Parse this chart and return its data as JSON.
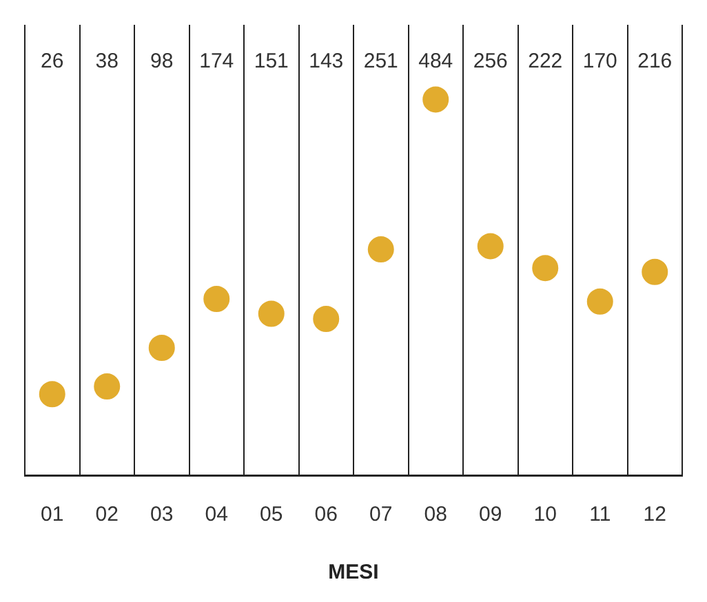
{
  "chart_data": {
    "type": "scatter",
    "xlabel": "MESI",
    "categories": [
      "01",
      "02",
      "03",
      "04",
      "05",
      "06",
      "07",
      "08",
      "09",
      "10",
      "11",
      "12"
    ],
    "series": [
      {
        "color": "#e2ac2e",
        "values": [
          26,
          38,
          98,
          174,
          151,
          143,
          251,
          484,
          256,
          222,
          170,
          216
        ]
      }
    ],
    "data_labels": true,
    "grid": "x",
    "legend": false,
    "marker": "circle"
  }
}
